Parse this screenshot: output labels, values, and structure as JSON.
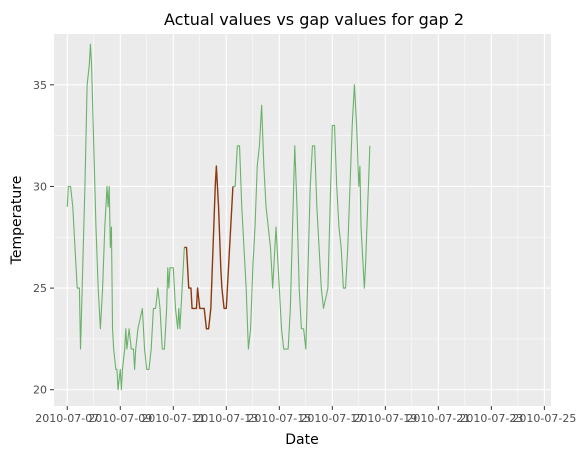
{
  "chart_data": {
    "type": "line",
    "title": "Actual values vs gap values for gap 2",
    "xlabel": "Date",
    "ylabel": "Temperature",
    "x_range": [
      "2010-07-06T12:00",
      "2010-07-25T06:00"
    ],
    "ylim": [
      19.2,
      37.5
    ],
    "x_ticks": [
      "2010-07-07",
      "2010-07-09",
      "2010-07-11",
      "2010-07-13",
      "2010-07-15",
      "2010-07-17",
      "2010-07-19",
      "2010-07-21",
      "2010-07-23",
      "2010-07-25"
    ],
    "y_ticks": [
      20,
      25,
      30,
      35
    ],
    "grid": true,
    "colors": {
      "panel": "#ebebeb",
      "grid": "#ffffff",
      "actual": "#6ab26a",
      "gap": "#8b3a0f"
    },
    "series": [
      {
        "role": "actual",
        "points": [
          [
            "2010-07-07T00:00",
            29
          ],
          [
            "2010-07-07T01:00",
            30
          ],
          [
            "2010-07-07T03:00",
            30
          ],
          [
            "2010-07-07T05:00",
            29
          ],
          [
            "2010-07-07T07:00",
            27
          ],
          [
            "2010-07-07T09:00",
            25
          ],
          [
            "2010-07-07T11:00",
            25
          ],
          [
            "2010-07-07T12:00",
            22
          ],
          [
            "2010-07-07T14:00",
            26
          ],
          [
            "2010-07-07T16:00",
            30
          ],
          [
            "2010-07-07T18:00",
            35
          ],
          [
            "2010-07-07T20:00",
            36
          ],
          [
            "2010-07-07T21:00",
            37
          ],
          [
            "2010-07-07T22:00",
            36
          ],
          [
            "2010-07-08T00:00",
            32
          ],
          [
            "2010-07-08T02:00",
            28
          ],
          [
            "2010-07-08T04:00",
            25
          ],
          [
            "2010-07-08T06:00",
            23
          ],
          [
            "2010-07-08T08:00",
            25
          ],
          [
            "2010-07-08T10:00",
            28
          ],
          [
            "2010-07-08T12:00",
            30
          ],
          [
            "2010-07-08T13:00",
            29
          ],
          [
            "2010-07-08T14:00",
            30
          ],
          [
            "2010-07-08T15:00",
            27
          ],
          [
            "2010-07-08T16:00",
            28
          ],
          [
            "2010-07-08T17:00",
            23
          ],
          [
            "2010-07-08T18:00",
            22
          ],
          [
            "2010-07-08T20:00",
            21
          ],
          [
            "2010-07-08T21:00",
            21
          ],
          [
            "2010-07-08T22:00",
            20
          ],
          [
            "2010-07-09T00:00",
            21
          ],
          [
            "2010-07-09T01:00",
            20
          ],
          [
            "2010-07-09T02:00",
            21
          ],
          [
            "2010-07-09T04:00",
            22
          ],
          [
            "2010-07-09T05:00",
            23
          ],
          [
            "2010-07-09T06:00",
            22
          ],
          [
            "2010-07-09T08:00",
            23
          ],
          [
            "2010-07-09T10:00",
            22
          ],
          [
            "2010-07-09T12:00",
            22
          ],
          [
            "2010-07-09T13:00",
            21
          ],
          [
            "2010-07-09T14:00",
            22
          ],
          [
            "2010-07-09T16:00",
            23
          ],
          [
            "2010-07-09T20:00",
            24
          ],
          [
            "2010-07-09T22:00",
            22
          ],
          [
            "2010-07-10T00:00",
            21
          ],
          [
            "2010-07-10T02:00",
            21
          ],
          [
            "2010-07-10T04:00",
            22
          ],
          [
            "2010-07-10T06:00",
            24
          ],
          [
            "2010-07-10T08:00",
            24
          ],
          [
            "2010-07-10T10:00",
            25
          ],
          [
            "2010-07-10T12:00",
            24
          ],
          [
            "2010-07-10T14:00",
            22
          ],
          [
            "2010-07-10T16:00",
            22
          ],
          [
            "2010-07-10T18:00",
            24
          ],
          [
            "2010-07-10T19:00",
            26
          ],
          [
            "2010-07-10T20:00",
            25
          ],
          [
            "2010-07-10T21:00",
            26
          ],
          [
            "2010-07-11T00:00",
            26
          ],
          [
            "2010-07-11T02:00",
            24
          ],
          [
            "2010-07-11T04:00",
            23
          ],
          [
            "2010-07-11T05:00",
            24
          ],
          [
            "2010-07-11T06:00",
            23
          ],
          [
            "2010-07-11T08:00",
            25
          ],
          [
            "2010-07-11T10:00",
            27
          ]
        ]
      },
      {
        "role": "gap",
        "points": [
          [
            "2010-07-11T10:00",
            27
          ],
          [
            "2010-07-11T12:00",
            27
          ],
          [
            "2010-07-11T14:00",
            25
          ],
          [
            "2010-07-11T16:00",
            25
          ],
          [
            "2010-07-11T17:00",
            24
          ],
          [
            "2010-07-11T19:00",
            24
          ],
          [
            "2010-07-11T21:00",
            24
          ],
          [
            "2010-07-11T22:00",
            25
          ],
          [
            "2010-07-12T00:00",
            24
          ],
          [
            "2010-07-12T02:00",
            24
          ],
          [
            "2010-07-12T04:00",
            24
          ],
          [
            "2010-07-12T06:00",
            23
          ],
          [
            "2010-07-12T08:00",
            23
          ],
          [
            "2010-07-12T10:00",
            24
          ],
          [
            "2010-07-12T12:00",
            27
          ],
          [
            "2010-07-12T14:00",
            30
          ],
          [
            "2010-07-12T15:00",
            31
          ],
          [
            "2010-07-12T17:00",
            29
          ],
          [
            "2010-07-12T19:00",
            26
          ],
          [
            "2010-07-12T20:00",
            25
          ],
          [
            "2010-07-12T22:00",
            24
          ],
          [
            "2010-07-13T00:00",
            24
          ],
          [
            "2010-07-13T02:00",
            26
          ],
          [
            "2010-07-13T04:00",
            28
          ],
          [
            "2010-07-13T06:00",
            30
          ]
        ]
      },
      {
        "role": "actual",
        "points": [
          [
            "2010-07-13T06:00",
            30
          ],
          [
            "2010-07-13T08:00",
            30
          ],
          [
            "2010-07-13T10:00",
            32
          ],
          [
            "2010-07-13T12:00",
            32
          ],
          [
            "2010-07-13T14:00",
            29
          ],
          [
            "2010-07-13T16:00",
            27
          ],
          [
            "2010-07-13T18:00",
            25
          ],
          [
            "2010-07-13T20:00",
            22
          ],
          [
            "2010-07-13T22:00",
            23
          ],
          [
            "2010-07-14T00:00",
            26
          ],
          [
            "2010-07-14T02:00",
            28
          ],
          [
            "2010-07-14T04:00",
            31
          ],
          [
            "2010-07-14T06:00",
            32
          ],
          [
            "2010-07-14T08:00",
            34
          ],
          [
            "2010-07-14T10:00",
            31
          ],
          [
            "2010-07-14T12:00",
            29
          ],
          [
            "2010-07-14T14:00",
            28
          ],
          [
            "2010-07-14T16:00",
            27
          ],
          [
            "2010-07-14T18:00",
            25
          ],
          [
            "2010-07-14T20:00",
            27
          ],
          [
            "2010-07-14T21:00",
            28
          ],
          [
            "2010-07-14T22:00",
            27
          ],
          [
            "2010-07-15T00:00",
            25
          ],
          [
            "2010-07-15T02:00",
            23
          ],
          [
            "2010-07-15T04:00",
            22
          ],
          [
            "2010-07-15T08:00",
            22
          ],
          [
            "2010-07-15T10:00",
            24
          ],
          [
            "2010-07-15T12:00",
            28
          ],
          [
            "2010-07-15T14:00",
            32
          ],
          [
            "2010-07-15T16:00",
            29
          ],
          [
            "2010-07-15T18:00",
            25
          ],
          [
            "2010-07-15T20:00",
            23
          ],
          [
            "2010-07-15T22:00",
            23
          ],
          [
            "2010-07-16T00:00",
            22
          ],
          [
            "2010-07-16T02:00",
            26
          ],
          [
            "2010-07-16T04:00",
            30
          ],
          [
            "2010-07-16T06:00",
            32
          ],
          [
            "2010-07-16T08:00",
            32
          ],
          [
            "2010-07-16T10:00",
            29
          ],
          [
            "2010-07-16T12:00",
            27
          ],
          [
            "2010-07-16T14:00",
            25
          ],
          [
            "2010-07-16T16:00",
            24
          ],
          [
            "2010-07-16T20:00",
            25
          ],
          [
            "2010-07-16T22:00",
            29
          ],
          [
            "2010-07-17T00:00",
            33
          ],
          [
            "2010-07-17T02:00",
            33
          ],
          [
            "2010-07-17T04:00",
            30
          ],
          [
            "2010-07-17T06:00",
            28
          ],
          [
            "2010-07-17T08:00",
            27
          ],
          [
            "2010-07-17T10:00",
            25
          ],
          [
            "2010-07-17T12:00",
            25
          ],
          [
            "2010-07-17T14:00",
            27
          ],
          [
            "2010-07-17T16:00",
            30
          ],
          [
            "2010-07-17T18:00",
            33
          ],
          [
            "2010-07-17T20:00",
            35
          ],
          [
            "2010-07-17T21:00",
            34
          ],
          [
            "2010-07-17T22:00",
            33
          ],
          [
            "2010-07-18T00:00",
            30
          ],
          [
            "2010-07-18T01:00",
            31
          ],
          [
            "2010-07-18T02:00",
            28
          ],
          [
            "2010-07-18T04:00",
            26
          ],
          [
            "2010-07-18T05:00",
            25
          ],
          [
            "2010-07-18T06:00",
            26
          ],
          [
            "2010-07-18T08:00",
            29
          ],
          [
            "2010-07-18T10:00",
            32
          ]
        ]
      }
    ]
  }
}
